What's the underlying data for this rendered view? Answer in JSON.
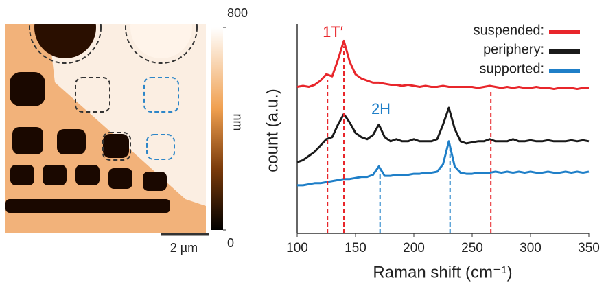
{
  "afm_image": {
    "colorbar_label": "nm",
    "colorbar_ticks": [
      0,
      800
    ],
    "scale_bar": "2 µm"
  },
  "chart_data": {
    "type": "line",
    "xlabel": "Raman shift (cm⁻¹)",
    "ylabel": "count (a.u.)",
    "xlim": [
      100,
      350
    ],
    "xticks": [
      100,
      150,
      200,
      250,
      300,
      350
    ],
    "ylim": [
      0,
      10
    ],
    "annotations": [
      "1T′",
      "2H"
    ],
    "ref_lines": [
      {
        "x": 126,
        "color": "#e8262b"
      },
      {
        "x": 140,
        "color": "#e8262b"
      },
      {
        "x": 266,
        "color": "#e8262b"
      },
      {
        "x": 171,
        "color": "#1f7fc8"
      },
      {
        "x": 231,
        "color": "#1f7fc8"
      }
    ],
    "x": [
      100,
      105,
      110,
      115,
      120,
      125,
      130,
      135,
      140,
      145,
      150,
      155,
      160,
      165,
      170,
      175,
      180,
      185,
      190,
      195,
      200,
      205,
      210,
      215,
      220,
      225,
      230,
      235,
      240,
      245,
      250,
      255,
      260,
      265,
      270,
      275,
      280,
      285,
      290,
      295,
      300,
      305,
      310,
      315,
      320,
      325,
      330,
      335,
      340,
      345,
      350
    ],
    "series": [
      {
        "name": "suspended:",
        "color": "#e8262b",
        "values": [
          7.0,
          7.05,
          7.0,
          7.1,
          7.3,
          7.6,
          7.5,
          8.3,
          9.2,
          8.2,
          7.6,
          7.4,
          7.3,
          7.2,
          7.2,
          7.15,
          7.1,
          7.1,
          7.05,
          7.1,
          7.05,
          7.0,
          7.05,
          7.0,
          7.0,
          7.05,
          7.0,
          7.0,
          7.0,
          7.0,
          7.0,
          6.95,
          7.0,
          7.05,
          7.0,
          6.95,
          7.0,
          6.95,
          7.0,
          6.95,
          6.95,
          7.0,
          6.95,
          6.95,
          6.9,
          6.95,
          6.95,
          6.95,
          6.9,
          6.95,
          6.95
        ]
      },
      {
        "name": "periphery:",
        "color": "#1a1a1a",
        "values": [
          3.4,
          3.5,
          3.7,
          3.9,
          4.2,
          4.5,
          4.6,
          5.2,
          5.7,
          5.3,
          4.8,
          4.6,
          4.5,
          4.7,
          5.2,
          4.6,
          4.4,
          4.5,
          4.4,
          4.4,
          4.5,
          4.4,
          4.4,
          4.4,
          4.5,
          5.2,
          6.0,
          5.0,
          4.4,
          4.3,
          4.35,
          4.4,
          4.4,
          4.5,
          4.4,
          4.4,
          4.4,
          4.5,
          4.4,
          4.4,
          4.45,
          4.4,
          4.4,
          4.45,
          4.4,
          4.4,
          4.4,
          4.45,
          4.4,
          4.45,
          4.4
        ]
      },
      {
        "name": "supported:",
        "color": "#1f7fc8",
        "values": [
          2.3,
          2.3,
          2.35,
          2.4,
          2.4,
          2.45,
          2.5,
          2.55,
          2.6,
          2.6,
          2.65,
          2.7,
          2.7,
          2.8,
          3.2,
          2.75,
          2.75,
          2.8,
          2.8,
          2.8,
          2.85,
          2.85,
          2.9,
          2.9,
          2.95,
          3.3,
          4.4,
          3.2,
          2.9,
          2.85,
          2.85,
          2.9,
          2.9,
          2.9,
          2.95,
          2.9,
          2.95,
          2.9,
          2.95,
          2.9,
          2.95,
          2.9,
          2.9,
          2.95,
          2.9,
          2.9,
          2.95,
          2.9,
          2.95,
          2.9,
          2.95
        ]
      }
    ]
  }
}
